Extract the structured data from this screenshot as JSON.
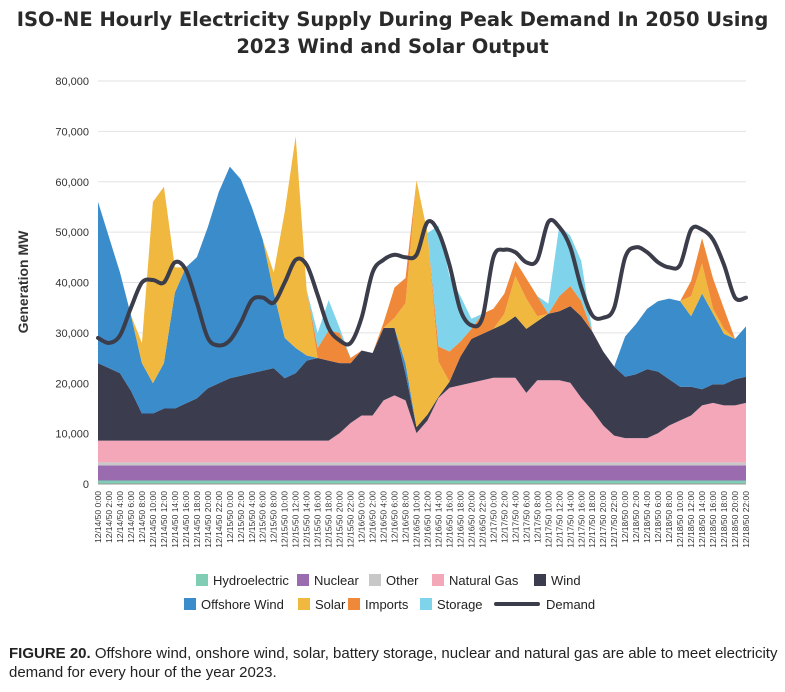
{
  "title_line1": "ISO-NE Hourly Electricity Supply During Peak Demand In 2050 Using",
  "title_line2": "2023 Wind and Solar Output",
  "caption_label": "FIGURE 20.",
  "caption_text": " Offshore wind, onshore wind, solar, battery storage, nuclear and natural gas are able to meet electricity demand for every hour of the year 2023.",
  "chart_data": {
    "type": "area",
    "title": "ISO-NE Hourly Electricity Supply During Peak Demand In 2050 Using 2023 Wind and Solar Output",
    "ylabel": "Generation MW",
    "xlabel": "",
    "ylim": [
      0,
      80000
    ],
    "yticks": [
      "0",
      "10,000",
      "20,000",
      "30,000",
      "40,000",
      "50,000",
      "60,000",
      "70,000",
      "80,000"
    ],
    "x": [
      "12/14/50 0:00",
      "12/14/50 2:00",
      "12/14/50 4:00",
      "12/14/50 6:00",
      "12/14/50 8:00",
      "12/14/50 10:00",
      "12/14/50 12:00",
      "12/14/50 14:00",
      "12/14/50 16:00",
      "12/14/50 18:00",
      "12/14/50 20:00",
      "12/14/50 22:00",
      "12/15/50 0:00",
      "12/15/50 2:00",
      "12/15/50 4:00",
      "12/15/50 6:00",
      "12/15/50 8:00",
      "12/15/50 10:00",
      "12/15/50 12:00",
      "12/15/50 14:00",
      "12/15/50 16:00",
      "12/15/50 18:00",
      "12/15/50 20:00",
      "12/15/50 22:00",
      "12/16/50 0:00",
      "12/16/50 2:00",
      "12/16/50 4:00",
      "12/16/50 6:00",
      "12/16/50 8:00",
      "12/16/50 10:00",
      "12/16/50 12:00",
      "12/16/50 14:00",
      "12/16/50 16:00",
      "12/16/50 18:00",
      "12/16/50 20:00",
      "12/16/50 22:00",
      "12/17/50 0:00",
      "12/17/50 2:00",
      "12/17/50 4:00",
      "12/17/50 6:00",
      "12/17/50 8:00",
      "12/17/50 10:00",
      "12/17/50 12:00",
      "12/17/50 14:00",
      "12/17/50 16:00",
      "12/17/50 18:00",
      "12/17/50 20:00",
      "12/17/50 22:00",
      "12/18/50 0:00",
      "12/18/50 2:00",
      "12/18/50 4:00",
      "12/18/50 6:00",
      "12/18/50 8:00",
      "12/18/50 10:00",
      "12/18/50 12:00",
      "12/18/50 14:00",
      "12/18/50 16:00",
      "12/18/50 18:00",
      "12/18/50 20:00",
      "12/18/50 22:00"
    ],
    "series": [
      {
        "name": "Hydroelectric",
        "color": "#7fcdb4",
        "values": [
          700,
          700,
          700,
          700,
          700,
          700,
          700,
          700,
          700,
          700,
          700,
          700,
          700,
          700,
          700,
          700,
          700,
          700,
          700,
          700,
          700,
          700,
          700,
          700,
          700,
          700,
          700,
          700,
          700,
          700,
          700,
          700,
          700,
          700,
          700,
          700,
          700,
          700,
          700,
          700,
          700,
          700,
          700,
          700,
          700,
          700,
          700,
          700,
          700,
          700,
          700,
          700,
          700,
          700,
          700,
          700,
          700,
          700,
          700,
          700
        ]
      },
      {
        "name": "Nuclear",
        "color": "#9b6bb0",
        "values": [
          3000,
          3000,
          3000,
          3000,
          3000,
          3000,
          3000,
          3000,
          3000,
          3000,
          3000,
          3000,
          3000,
          3000,
          3000,
          3000,
          3000,
          3000,
          3000,
          3000,
          3000,
          3000,
          3000,
          3000,
          3000,
          3000,
          3000,
          3000,
          3000,
          3000,
          3000,
          3000,
          3000,
          3000,
          3000,
          3000,
          3000,
          3000,
          3000,
          3000,
          3000,
          3000,
          3000,
          3000,
          3000,
          3000,
          3000,
          3000,
          3000,
          3000,
          3000,
          3000,
          3000,
          3000,
          3000,
          3000,
          3000,
          3000,
          3000,
          3000
        ]
      },
      {
        "name": "Other",
        "color": "#c8c8c8",
        "values": [
          600,
          600,
          600,
          600,
          600,
          600,
          600,
          600,
          600,
          600,
          600,
          600,
          600,
          600,
          600,
          600,
          600,
          600,
          600,
          600,
          600,
          600,
          600,
          600,
          600,
          600,
          600,
          600,
          600,
          600,
          600,
          600,
          600,
          600,
          600,
          600,
          600,
          600,
          600,
          600,
          600,
          600,
          600,
          600,
          600,
          600,
          600,
          600,
          600,
          600,
          600,
          600,
          600,
          600,
          600,
          600,
          600,
          600,
          600,
          600
        ]
      },
      {
        "name": "Natural Gas",
        "color": "#f4a7b9",
        "values": [
          4300,
          4300,
          4300,
          4300,
          4300,
          4300,
          4300,
          4300,
          4300,
          4300,
          4300,
          4300,
          4300,
          4300,
          4300,
          4300,
          4300,
          4300,
          4300,
          4300,
          4300,
          4300,
          5800,
          7800,
          9300,
          9300,
          12300,
          13300,
          12300,
          5800,
          8300,
          12800,
          14800,
          15300,
          15800,
          16300,
          16800,
          16800,
          16800,
          13800,
          16300,
          16300,
          16300,
          15800,
          12800,
          10300,
          7300,
          5300,
          4800,
          4800,
          4800,
          5800,
          7300,
          8300,
          9300,
          11300,
          11800,
          11300,
          11300,
          11800
        ]
      },
      {
        "name": "Wind",
        "color": "#3b3d4f",
        "values": [
          15400,
          14400,
          13400,
          9900,
          5400,
          5400,
          6400,
          6400,
          7400,
          8400,
          10400,
          11400,
          12400,
          12900,
          13400,
          13900,
          14400,
          12400,
          13400,
          15900,
          16400,
          15900,
          13900,
          11900,
          12900,
          12400,
          14400,
          13400,
          5300,
          1200,
          1200,
          200,
          1200,
          5700,
          8700,
          9200,
          9700,
          10700,
          12200,
          12700,
          11700,
          13200,
          13700,
          15200,
          16200,
          15700,
          14700,
          13700,
          12200,
          12700,
          13700,
          12200,
          9200,
          6700,
          5700,
          3200,
          3700,
          4200,
          5200,
          5200
        ]
      },
      {
        "name": "Offshore Wind",
        "color": "#3a8ccb",
        "values": [
          32000,
          26000,
          20000,
          15000,
          10000,
          6000,
          9000,
          23000,
          27000,
          28000,
          32000,
          38000,
          42000,
          39000,
          33000,
          26000,
          15000,
          8000,
          5000,
          1000,
          0,
          0,
          0,
          0,
          0,
          0,
          0,
          0,
          2000,
          0,
          0,
          0,
          0,
          0,
          0,
          0,
          0,
          0,
          0,
          0,
          0,
          0,
          0,
          0,
          0,
          0,
          0,
          0,
          8000,
          10000,
          12000,
          14000,
          16000,
          17000,
          14000,
          19000,
          14000,
          10000,
          8000,
          10000
        ]
      },
      {
        "name": "Solar",
        "color": "#f0b83e",
        "values": [
          0,
          0,
          0,
          0,
          4000,
          36000,
          35000,
          5000,
          0,
          0,
          0,
          0,
          0,
          0,
          0,
          0,
          4000,
          25000,
          42000,
          13000,
          0,
          0,
          0,
          0,
          0,
          0,
          0,
          2000,
          12000,
          49000,
          36000,
          7000,
          0,
          0,
          0,
          0,
          0,
          2000,
          8000,
          6000,
          1000,
          0,
          0,
          0,
          0,
          0,
          0,
          0,
          0,
          0,
          0,
          0,
          0,
          0,
          4000,
          6000,
          1000,
          1000,
          0,
          0
        ]
      },
      {
        "name": "Imports",
        "color": "#f0883a",
        "values": [
          0,
          0,
          0,
          0,
          0,
          0,
          0,
          0,
          0,
          0,
          0,
          0,
          0,
          0,
          0,
          0,
          0,
          0,
          0,
          0,
          2000,
          6000,
          6000,
          1000,
          0,
          0,
          1000,
          6000,
          5000,
          0,
          0,
          3000,
          6000,
          3000,
          2000,
          4000,
          4000,
          4000,
          3000,
          4000,
          4000,
          0,
          3000,
          4000,
          3000,
          0,
          0,
          0,
          0,
          0,
          0,
          0,
          0,
          0,
          3000,
          5000,
          6000,
          4000,
          0,
          0
        ]
      },
      {
        "name": "Storage",
        "color": "#7fd3ea",
        "values": [
          0,
          0,
          0,
          0,
          0,
          0,
          0,
          0,
          0,
          0,
          0,
          0,
          0,
          0,
          0,
          0,
          0,
          0,
          0,
          0,
          3000,
          6000,
          1000,
          0,
          0,
          0,
          0,
          0,
          0,
          0,
          0,
          24000,
          15000,
          9000,
          2000,
          0,
          0,
          0,
          0,
          0,
          0,
          2000,
          14000,
          10000,
          8000,
          0,
          0,
          0,
          0,
          0,
          0,
          0,
          0,
          0,
          0,
          0,
          0,
          0,
          0,
          0
        ]
      }
    ],
    "demand": {
      "name": "Demand",
      "color": "#3b3d4a",
      "values": [
        29000,
        28000,
        29500,
        35000,
        40000,
        40500,
        40000,
        44000,
        42500,
        36000,
        29000,
        27500,
        28500,
        32000,
        36500,
        37000,
        36000,
        40000,
        44500,
        43500,
        37500,
        31000,
        28500,
        28000,
        33000,
        42000,
        44500,
        45500,
        45000,
        45500,
        52000,
        50000,
        43500,
        34500,
        31500,
        33000,
        45000,
        46500,
        46000,
        44000,
        44500,
        52000,
        51000,
        47000,
        39000,
        33500,
        33000,
        35000,
        45000,
        47000,
        46000,
        44000,
        43000,
        43500,
        50500,
        50500,
        48500,
        43500,
        37000,
        37000
      ]
    },
    "legend": [
      [
        "Hydroelectric",
        "Nuclear",
        "Other",
        "Natural Gas",
        "Wind"
      ],
      [
        "Offshore Wind",
        "Solar",
        "Imports",
        "Storage",
        "Demand"
      ]
    ]
  }
}
